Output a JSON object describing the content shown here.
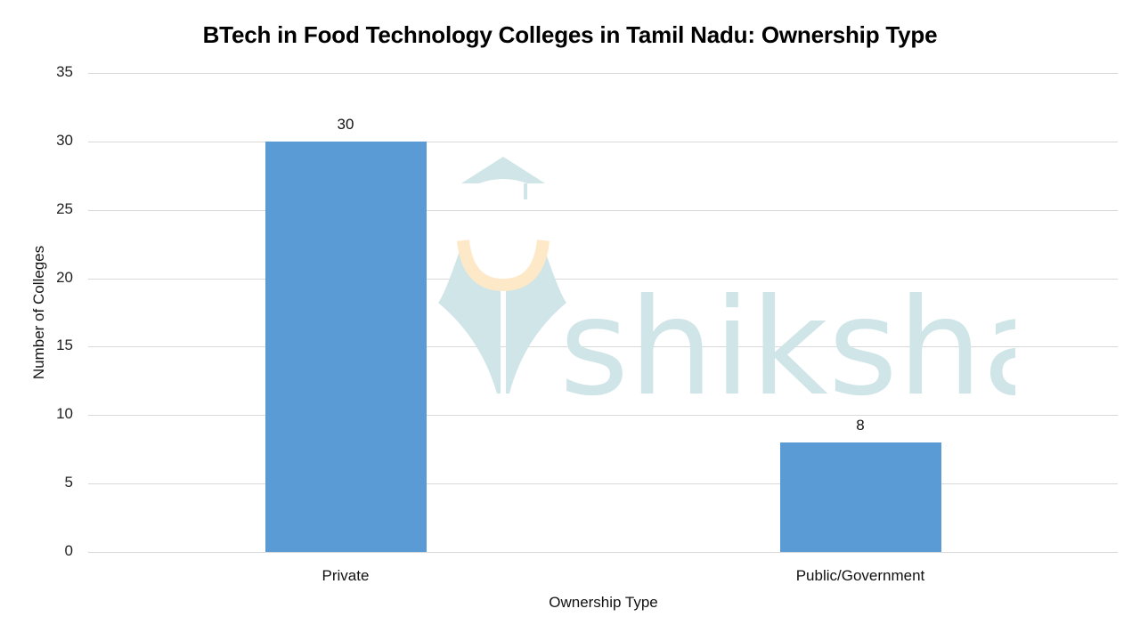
{
  "chart_data": {
    "type": "bar",
    "title": "BTech in Food Technology Colleges in Tamil Nadu: Ownership Type",
    "xlabel": "Ownership Type",
    "ylabel": "Number of Colleges",
    "categories": [
      "Private",
      "Public/Government"
    ],
    "values": [
      30,
      8
    ],
    "data_labels": [
      "30",
      "8"
    ],
    "ylim": [
      0,
      35
    ],
    "yticks": [
      "0",
      "5",
      "10",
      "15",
      "20",
      "25",
      "30",
      "35"
    ],
    "grid": true,
    "legend": null,
    "bar_color": "#5b9bd5"
  },
  "watermark": {
    "text": "shiksha",
    "color": "#cfe5e8",
    "accent": "#fde9c8"
  }
}
